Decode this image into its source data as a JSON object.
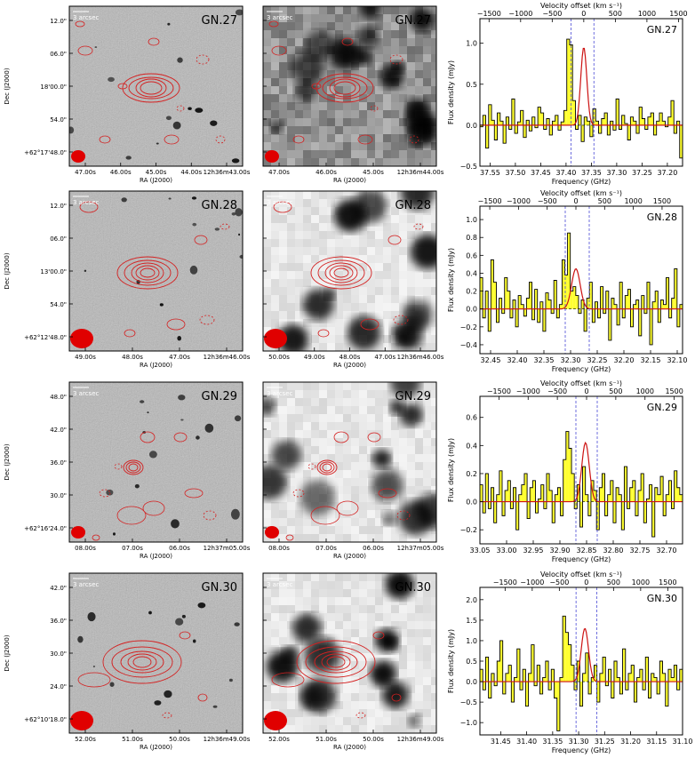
{
  "colors": {
    "contour": "#d42020",
    "beam": "#e00000",
    "fill": "#ffff30",
    "step": "#000000",
    "fit": "#cc1111",
    "vline": "#4b4bd6",
    "panel_bg": "#bdbdbd"
  },
  "image_axes": {
    "ra_label": "RA (J2000)",
    "dec_label": "Dec (J2000)",
    "scale_label": "3 arcsec"
  },
  "spectrum_axes": {
    "top_label": "Velocity offset (km s⁻¹)",
    "bottom_label": "Frequency (GHz)",
    "y_label": "Flux density (mJy)"
  },
  "rows": [
    {
      "name": "GN.27",
      "dec_ticks": [
        "12.0\"",
        "06.0\"",
        "18'00.0\"",
        "54.0\"",
        "+62°17'48.0\""
      ],
      "ra_ticks_left": [
        "47.00s",
        "46.00s",
        "45.00s",
        "44.00s",
        "12h36m43.00s"
      ],
      "ra_ticks_right": [
        "47.00s",
        "46.00s",
        "45.00s",
        "12h36m44.00s"
      ],
      "beam": "small",
      "chart_data": {
        "type": "line",
        "xlim": [
          37.57,
          37.17
        ],
        "ylim": [
          -0.5,
          1.3
        ],
        "yticks": [
          -0.5,
          0.0,
          0.5,
          1.0
        ],
        "ytick_labels": [
          "−0.5",
          "0.0",
          "0.5",
          "1.0"
        ],
        "xticks": [
          37.55,
          37.5,
          37.45,
          37.4,
          37.35,
          37.3,
          37.25,
          37.2
        ],
        "xtick_labels": [
          "37.55",
          "37.50",
          "37.45",
          "37.40",
          "37.35",
          "37.30",
          "37.25",
          "37.20"
        ],
        "vticks": [
          -1500,
          -1000,
          -500,
          0,
          500,
          1000,
          1500
        ],
        "vtick_labels": [
          "−1500",
          "−1000",
          "−500",
          "0",
          "500",
          "1000",
          "1500"
        ],
        "v_center_freq": 37.365,
        "vlines": [
          37.39,
          37.345
        ],
        "line_center": 37.365,
        "line_amp": 0.95,
        "line_sigma": 0.006,
        "flux": [
          -0.02,
          0.12,
          -0.28,
          0.25,
          0.06,
          -0.18,
          0.15,
          0.05,
          -0.22,
          0.1,
          -0.05,
          0.32,
          -0.1,
          0.04,
          0.18,
          -0.15,
          0.06,
          -0.07,
          0.1,
          -0.03,
          0.22,
          0.15,
          -0.05,
          0.08,
          -0.12,
          0.05,
          0.12,
          -0.06,
          0.04,
          0.18,
          1.05,
          0.98,
          0.3,
          -0.05,
          0.12,
          -0.2,
          0.1,
          0.05,
          -0.14,
          0.2,
          0.05,
          -0.1,
          0.08,
          0.15,
          -0.12,
          0.05,
          -0.06,
          0.32,
          -0.05,
          0.12,
          0.02,
          -0.18,
          0.1,
          0.05,
          -0.1,
          0.22,
          0.08,
          -0.05,
          0.1,
          0.15,
          -0.12,
          0.05,
          0.15,
          0.05,
          -0.02,
          0.1,
          0.3,
          -0.1,
          0.05,
          -0.4
        ]
      }
    },
    {
      "name": "GN.28",
      "dec_ticks": [
        "12.0\"",
        "06.0\"",
        "13'00.0\"",
        "54.0\"",
        "+62°12'48.0\""
      ],
      "ra_ticks_left": [
        "49.00s",
        "48.00s",
        "47.00s",
        "12h36m46.00s"
      ],
      "ra_ticks_right": [
        "50.00s",
        "49.00s",
        "48.00s",
        "47.00s",
        "12h36m46.00s"
      ],
      "beam": "large",
      "chart_data": {
        "type": "line",
        "xlim": [
          32.47,
          32.09
        ],
        "ylim": [
          -0.5,
          1.15
        ],
        "yticks": [
          -0.4,
          -0.2,
          0.0,
          0.2,
          0.4,
          0.6,
          0.8,
          1.0
        ],
        "ytick_labels": [
          "−0.4",
          "−0.2",
          "0.0",
          "0.2",
          "0.4",
          "0.6",
          "0.8",
          "1.0"
        ],
        "xticks": [
          32.45,
          32.4,
          32.35,
          32.3,
          32.25,
          32.2,
          32.15,
          32.1
        ],
        "xtick_labels": [
          "32.45",
          "32.40",
          "32.35",
          "32.30",
          "32.25",
          "32.20",
          "32.15",
          "32.10"
        ],
        "vticks": [
          -1500,
          -1000,
          -500,
          0,
          500,
          1000,
          1500
        ],
        "vtick_labels": [
          "−1500",
          "−1000",
          "−500",
          "0",
          "500",
          "1000",
          "1500"
        ],
        "v_center_freq": 32.29,
        "vlines": [
          32.31,
          32.265
        ],
        "line_center": 32.29,
        "line_amp": 0.45,
        "line_sigma": 0.008,
        "flux": [
          0.35,
          -0.1,
          0.2,
          -0.25,
          0.55,
          0.3,
          -0.15,
          0.12,
          -0.05,
          0.35,
          0.2,
          -0.1,
          0.1,
          -0.2,
          0.15,
          0.05,
          -0.08,
          0.12,
          0.3,
          -0.12,
          0.22,
          -0.15,
          0.08,
          -0.25,
          0.18,
          0.1,
          -0.05,
          0.32,
          -0.1,
          0.05,
          0.55,
          0.38,
          0.85,
          0.2,
          0.25,
          0.15,
          -0.05,
          0.1,
          -0.25,
          0.12,
          0.3,
          -0.15,
          0.08,
          -0.1,
          0.25,
          -0.05,
          0.2,
          -0.35,
          0.12,
          0.05,
          -0.18,
          0.3,
          -0.1,
          0.15,
          0.22,
          -0.2,
          0.05,
          0.1,
          -0.3,
          0.15,
          -0.05,
          0.3,
          -0.4,
          0.08,
          0.2,
          -0.15,
          0.1,
          0.05,
          0.35,
          -0.1,
          0.12,
          0.45,
          -0.2,
          0.05
        ]
      }
    },
    {
      "name": "GN.29",
      "dec_ticks": [
        "48.0\"",
        "42.0\"",
        "36.0\"",
        "30.0\"",
        "+62°16'24.0\""
      ],
      "ra_ticks_left": [
        "08.00s",
        "07.00s",
        "06.00s",
        "12h37m05.00s"
      ],
      "ra_ticks_right": [
        "08.00s",
        "07.00s",
        "06.00s",
        "12h37m05.00s"
      ],
      "beam": "small",
      "chart_data": {
        "type": "line",
        "xlim": [
          33.05,
          32.67
        ],
        "ylim": [
          -0.3,
          0.75
        ],
        "yticks": [
          -0.2,
          0.0,
          0.2,
          0.4,
          0.6
        ],
        "ytick_labels": [
          "−0.2",
          "0.0",
          "0.2",
          "0.4",
          "0.6"
        ],
        "xticks": [
          33.05,
          33.0,
          32.95,
          32.9,
          32.85,
          32.8,
          32.75,
          32.7
        ],
        "xtick_labels": [
          "33.05",
          "33.00",
          "32.95",
          "32.90",
          "32.85",
          "32.80",
          "32.75",
          "32.70"
        ],
        "vticks": [
          -1500,
          -1000,
          -500,
          0,
          500,
          1000,
          1500
        ],
        "vtick_labels": [
          "−1500",
          "−1000",
          "−500",
          "0",
          "500",
          "1000",
          "1500"
        ],
        "v_center_freq": 32.85,
        "vlines": [
          32.87,
          32.83
        ],
        "line_center": 32.852,
        "line_amp": 0.42,
        "line_sigma": 0.007,
        "flux": [
          0.12,
          -0.08,
          0.2,
          -0.05,
          0.1,
          -0.15,
          0.05,
          0.22,
          -0.1,
          0.08,
          0.15,
          -0.05,
          0.1,
          -0.2,
          0.05,
          0.12,
          0.2,
          -0.12,
          0.1,
          0.15,
          -0.08,
          0.02,
          0.12,
          -0.05,
          0.2,
          0.08,
          -0.15,
          0.05,
          0.1,
          -0.1,
          0.3,
          0.5,
          0.38,
          0.2,
          -0.05,
          0.12,
          -0.18,
          0.25,
          0.05,
          -0.1,
          0.15,
          0.08,
          -0.2,
          0.1,
          0.2,
          -0.1,
          0.05,
          0.15,
          -0.15,
          0.1,
          0.05,
          -0.2,
          0.25,
          -0.05,
          0.1,
          0.15,
          -0.1,
          0.08,
          0.2,
          -0.15,
          0.02,
          0.12,
          -0.25,
          0.1,
          0.05,
          0.18,
          -0.1,
          0.05,
          0.15,
          -0.05,
          0.22,
          0.1,
          0.05
        ]
      }
    },
    {
      "name": "GN.30",
      "dec_ticks": [
        "42.0\"",
        "36.0\"",
        "30.0\"",
        "24.0\"",
        "+62°10'18.0\""
      ],
      "ra_ticks_left": [
        "52.00s",
        "51.00s",
        "50.00s",
        "12h36m49.00s"
      ],
      "ra_ticks_right": [
        "52.00s",
        "51.00s",
        "50.00s",
        "12h36m49.00s"
      ],
      "beam": "large",
      "chart_data": {
        "type": "line",
        "xlim": [
          31.49,
          31.1
        ],
        "ylim": [
          -1.3,
          2.3
        ],
        "yticks": [
          -1.0,
          -0.5,
          0.0,
          0.5,
          1.0,
          1.5,
          2.0
        ],
        "ytick_labels": [
          "−1.0",
          "−0.5",
          "0.0",
          "0.5",
          "1.0",
          "1.5",
          "2.0"
        ],
        "xticks": [
          31.45,
          31.4,
          31.35,
          31.3,
          31.25,
          31.2,
          31.15,
          31.1
        ],
        "xtick_labels": [
          "31.45",
          "31.40",
          "31.35",
          "31.30",
          "31.25",
          "31.20",
          "31.15",
          "31.10"
        ],
        "vticks": [
          -1500,
          -1000,
          -500,
          0,
          500,
          1000,
          1500
        ],
        "vtick_labels": [
          "−1500",
          "−1000",
          "−500",
          "0",
          "500",
          "1000",
          "1500"
        ],
        "v_center_freq": 31.285,
        "vlines": [
          31.305,
          31.265
        ],
        "line_center": 31.288,
        "line_amp": 1.3,
        "line_sigma": 0.007,
        "flux": [
          0.3,
          -0.2,
          0.6,
          -0.4,
          0.2,
          -0.1,
          0.5,
          1.0,
          -0.3,
          0.2,
          0.4,
          -0.5,
          0.1,
          0.8,
          -0.2,
          0.3,
          -0.6,
          0.2,
          0.9,
          -0.1,
          0.4,
          -0.3,
          0.1,
          0.5,
          -0.2,
          0.3,
          -0.4,
          -1.2,
          0.1,
          1.6,
          1.2,
          0.9,
          0.4,
          -0.2,
          0.5,
          -0.6,
          0.2,
          0.7,
          -0.3,
          0.1,
          0.4,
          -0.5,
          0.2,
          0.6,
          -0.1,
          0.3,
          -0.4,
          0.5,
          0.1,
          -0.3,
          0.8,
          -0.2,
          0.2,
          0.4,
          -0.5,
          0.1,
          0.3,
          -0.2,
          0.6,
          -0.4,
          0.2,
          0.1,
          -0.3,
          0.5,
          0.2,
          -0.6,
          0.3,
          0.1,
          0.4,
          -0.2,
          0.3
        ]
      }
    }
  ]
}
